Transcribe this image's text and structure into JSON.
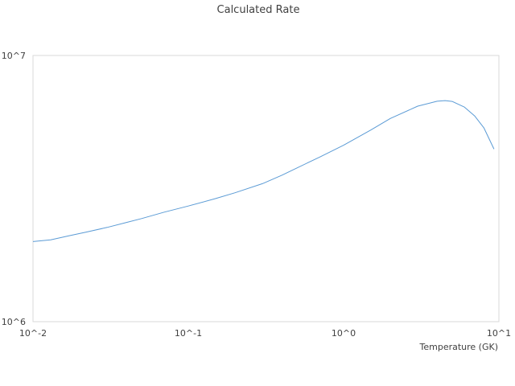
{
  "chart_data": {
    "type": "line",
    "title": "Calculated Rate",
    "xlabel": "Temperature (GK)",
    "ylabel": "",
    "x_scale": "log",
    "y_scale": "log",
    "xlim": [
      0.01,
      10
    ],
    "ylim": [
      1000000,
      10000000
    ],
    "x_ticks": [
      {
        "value": 0.01,
        "label": "10^-2"
      },
      {
        "value": 0.1,
        "label": "10^-1"
      },
      {
        "value": 1,
        "label": "10^0"
      },
      {
        "value": 10,
        "label": "10^1"
      }
    ],
    "y_ticks": [
      {
        "value": 1000000,
        "label": "10^6"
      },
      {
        "value": 10000000,
        "label": "10^7"
      }
    ],
    "grid": false,
    "legend": "none",
    "series": [
      {
        "color": "#5b9bd5",
        "x": [
          0.01,
          0.013,
          0.017,
          0.022,
          0.03,
          0.04,
          0.05,
          0.07,
          0.1,
          0.15,
          0.2,
          0.3,
          0.4,
          0.5,
          0.7,
          1.0,
          1.5,
          2.0,
          3.0,
          4.0,
          4.5,
          5.0,
          6.0,
          7.0,
          8.0,
          9.3
        ],
        "y": [
          2000000,
          2030000,
          2100000,
          2170000,
          2260000,
          2360000,
          2440000,
          2580000,
          2720000,
          2900000,
          3050000,
          3300000,
          3550000,
          3780000,
          4150000,
          4600000,
          5250000,
          5800000,
          6450000,
          6730000,
          6770000,
          6720000,
          6400000,
          5920000,
          5350000,
          4450000
        ]
      }
    ]
  }
}
